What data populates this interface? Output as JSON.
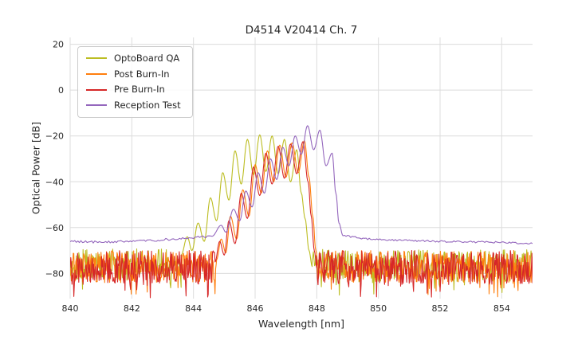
{
  "chart_data": {
    "type": "line",
    "title": "D4514 V20414 Ch. 7",
    "xlabel": "Wavelength [nm]",
    "ylabel": "Optical Power [dB]",
    "xlim": [
      840,
      855
    ],
    "ylim": [
      -91,
      23
    ],
    "xticks": [
      840,
      842,
      844,
      846,
      848,
      850,
      852,
      854
    ],
    "yticks": [
      20,
      0,
      -20,
      -40,
      -60,
      -80
    ],
    "grid": true,
    "grid_color": "#dcdcdc",
    "text_color": "#262626",
    "background": "#ffffff",
    "legend_position": "upper left",
    "series": [
      {
        "name": "OptoBoard QA",
        "color": "#bcbd22",
        "segments": [
          {
            "type": "noise",
            "x0": 840.0,
            "x1": 843.6,
            "base": -76,
            "amp": 7,
            "step": 0.02,
            "seed": 101
          },
          {
            "type": "points",
            "pts": [
              [
                843.6,
                -72
              ],
              [
                843.8,
                -64
              ],
              [
                843.95,
                -70
              ],
              [
                844.15,
                -58
              ],
              [
                844.35,
                -66
              ],
              [
                844.55,
                -47
              ],
              [
                844.75,
                -57
              ],
              [
                844.95,
                -36
              ],
              [
                845.15,
                -48
              ],
              [
                845.35,
                -26.5
              ],
              [
                845.55,
                -41
              ],
              [
                845.75,
                -21.5
              ],
              [
                845.95,
                -37
              ],
              [
                846.15,
                -19.5
              ],
              [
                846.35,
                -35.5
              ],
              [
                846.55,
                -20
              ],
              [
                846.75,
                -36.5
              ],
              [
                846.95,
                -21.5
              ],
              [
                847.15,
                -40
              ],
              [
                847.35,
                -26
              ],
              [
                847.5,
                -45
              ],
              [
                847.62,
                -56
              ],
              [
                847.75,
                -70
              ],
              [
                847.85,
                -77
              ]
            ]
          },
          {
            "type": "noise",
            "x0": 847.85,
            "x1": 855.0,
            "base": -76.5,
            "amp": 7,
            "step": 0.02,
            "seed": 102
          }
        ]
      },
      {
        "name": "Post Burn-In",
        "color": "#ff7f0e",
        "segments": [
          {
            "type": "noise",
            "x0": 840.0,
            "x1": 844.75,
            "base": -77,
            "amp": 7,
            "step": 0.02,
            "seed": 201
          },
          {
            "type": "points",
            "pts": [
              [
                844.75,
                -74
              ],
              [
                844.9,
                -65
              ],
              [
                845.05,
                -71
              ],
              [
                845.2,
                -55
              ],
              [
                845.4,
                -65
              ],
              [
                845.6,
                -43.5
              ],
              [
                845.8,
                -55
              ],
              [
                846.0,
                -32.5
              ],
              [
                846.2,
                -45
              ],
              [
                846.4,
                -26.5
              ],
              [
                846.6,
                -40
              ],
              [
                846.8,
                -24
              ],
              [
                847.0,
                -38
              ],
              [
                847.2,
                -23
              ],
              [
                847.4,
                -36
              ],
              [
                847.6,
                -22
              ],
              [
                847.75,
                -38
              ],
              [
                847.87,
                -55
              ],
              [
                847.97,
                -70
              ],
              [
                848.05,
                -77
              ]
            ]
          },
          {
            "type": "noise",
            "x0": 848.05,
            "x1": 855.0,
            "base": -77,
            "amp": 7,
            "step": 0.02,
            "seed": 202
          }
        ]
      },
      {
        "name": "Pre Burn-In",
        "color": "#d62728",
        "segments": [
          {
            "type": "noise",
            "x0": 840.0,
            "x1": 844.7,
            "base": -77.5,
            "amp": 7.5,
            "step": 0.02,
            "seed": 301
          },
          {
            "type": "points",
            "pts": [
              [
                844.7,
                -75
              ],
              [
                844.85,
                -66
              ],
              [
                845.0,
                -72
              ],
              [
                845.15,
                -57
              ],
              [
                845.35,
                -67
              ],
              [
                845.55,
                -45
              ],
              [
                845.75,
                -56
              ],
              [
                845.95,
                -33.5
              ],
              [
                846.15,
                -46
              ],
              [
                846.35,
                -27.5
              ],
              [
                846.55,
                -41
              ],
              [
                846.75,
                -24.5
              ],
              [
                846.95,
                -38.5
              ],
              [
                847.15,
                -23.5
              ],
              [
                847.35,
                -36.5
              ],
              [
                847.55,
                -22.5
              ],
              [
                847.72,
                -40
              ],
              [
                847.82,
                -55
              ],
              [
                847.92,
                -70
              ],
              [
                848.0,
                -77.5
              ]
            ]
          },
          {
            "type": "noise",
            "x0": 848.0,
            "x1": 855.0,
            "base": -77.5,
            "amp": 7.5,
            "step": 0.02,
            "seed": 302
          }
        ]
      },
      {
        "name": "Reception Test",
        "color": "#9467bd",
        "segments": [
          {
            "type": "noisy_line",
            "amp": 0.5,
            "step": 0.05,
            "seed": 401,
            "pts": [
              [
                840,
                -66
              ],
              [
                841,
                -66.3
              ],
              [
                842,
                -66.1
              ],
              [
                842.5,
                -65.8
              ],
              [
                843,
                -65.3
              ],
              [
                843.5,
                -64.8
              ],
              [
                844,
                -64.3
              ],
              [
                844.6,
                -63.8
              ]
            ]
          },
          {
            "type": "points",
            "pts": [
              [
                844.6,
                -63.8
              ],
              [
                844.9,
                -59
              ],
              [
                845.05,
                -62
              ],
              [
                845.3,
                -52
              ],
              [
                845.5,
                -57
              ],
              [
                845.7,
                -44
              ],
              [
                845.9,
                -51
              ],
              [
                846.1,
                -36
              ],
              [
                846.3,
                -45
              ],
              [
                846.5,
                -30
              ],
              [
                846.7,
                -39
              ],
              [
                846.9,
                -25
              ],
              [
                847.1,
                -33
              ],
              [
                847.3,
                -20
              ],
              [
                847.5,
                -28
              ],
              [
                847.7,
                -15.5
              ],
              [
                847.9,
                -26
              ],
              [
                848.1,
                -17.5
              ],
              [
                848.3,
                -33
              ],
              [
                848.5,
                -27.5
              ],
              [
                848.62,
                -45
              ],
              [
                848.72,
                -58
              ],
              [
                848.85,
                -63.5
              ]
            ]
          },
          {
            "type": "noisy_line",
            "amp": 0.4,
            "step": 0.05,
            "seed": 402,
            "pts": [
              [
                848.85,
                -63.5
              ],
              [
                849.5,
                -64.8
              ],
              [
                850,
                -65.2
              ],
              [
                851,
                -65.6
              ],
              [
                852,
                -66
              ],
              [
                853,
                -66.2
              ],
              [
                854,
                -66.5
              ],
              [
                855,
                -67
              ]
            ]
          }
        ]
      }
    ]
  }
}
